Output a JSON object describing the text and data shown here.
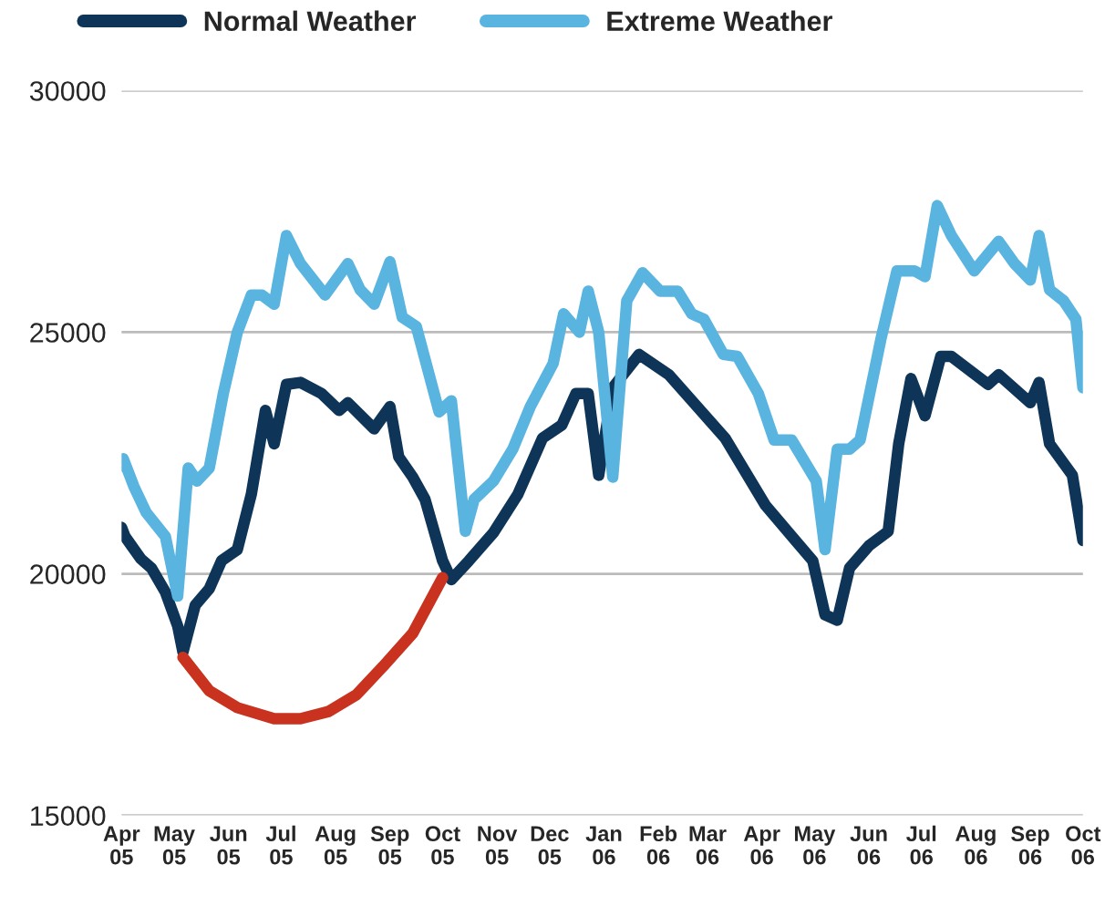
{
  "chart_data": {
    "type": "line",
    "series": [
      {
        "name": "Normal Weather",
        "color": "#0e3558",
        "x": [
          "2005-04-01",
          "2005-04-03",
          "2005-04-12",
          "2005-04-18",
          "2005-04-26",
          "2005-05-03",
          "2005-05-06",
          "2005-05-13",
          "2005-05-21",
          "2005-05-28",
          "2005-06-06",
          "2005-06-14",
          "2005-06-22",
          "2005-06-27",
          "2005-07-04",
          "2005-07-12",
          "2005-07-24",
          "2005-08-03",
          "2005-08-08",
          "2005-08-23",
          "2005-09-01",
          "2005-09-06",
          "2005-09-14",
          "2005-09-21",
          "2005-10-01",
          "2005-10-06",
          "2005-10-16",
          "2005-10-30",
          "2005-11-13",
          "2005-11-27",
          "2005-12-08",
          "2005-12-16",
          "2005-12-23",
          "2005-12-29",
          "2006-01-06",
          "2006-01-21",
          "2006-02-07",
          "2006-03-11",
          "2006-04-03",
          "2006-04-21",
          "2006-04-30",
          "2006-05-07",
          "2006-05-14",
          "2006-05-21",
          "2006-06-01",
          "2006-06-12",
          "2006-06-18",
          "2006-06-25",
          "2006-07-03",
          "2006-07-12",
          "2006-07-18",
          "2006-08-08",
          "2006-08-14",
          "2006-09-01",
          "2006-09-06",
          "2006-09-12",
          "2006-09-25",
          "2006-10-01"
        ],
        "values": [
          20960,
          20770,
          20310,
          20120,
          19620,
          18920,
          18380,
          19350,
          19690,
          20270,
          20500,
          21650,
          23380,
          22690,
          23920,
          23960,
          23730,
          23380,
          23540,
          23000,
          23460,
          22420,
          22000,
          21540,
          20270,
          19880,
          20270,
          20850,
          21650,
          22810,
          23080,
          23730,
          23730,
          22040,
          23850,
          24540,
          24120,
          22810,
          21420,
          20650,
          20270,
          19150,
          19040,
          20120,
          20580,
          20880,
          22690,
          24040,
          23270,
          24500,
          24500,
          23920,
          24120,
          23540,
          23960,
          22690,
          22040,
          20690
        ]
      },
      {
        "name": "Extreme Weather",
        "color": "#5ab4e0",
        "x": [
          "2005-04-01",
          "2005-04-02",
          "2005-04-08",
          "2005-04-15",
          "2005-04-26",
          "2005-05-03",
          "2005-05-09",
          "2005-05-14",
          "2005-05-21",
          "2005-05-29",
          "2005-06-06",
          "2005-06-14",
          "2005-06-20",
          "2005-06-27",
          "2005-07-04",
          "2005-07-12",
          "2005-07-26",
          "2005-08-08",
          "2005-08-15",
          "2005-08-23",
          "2005-09-01",
          "2005-09-08",
          "2005-09-16",
          "2005-09-29",
          "2005-10-06",
          "2005-10-14",
          "2005-10-19",
          "2005-10-30",
          "2005-11-10",
          "2005-11-20",
          "2005-12-03",
          "2005-12-09",
          "2005-12-18",
          "2005-12-23",
          "2005-12-29",
          "2006-01-06",
          "2006-01-14",
          "2006-01-23",
          "2006-02-02",
          "2006-02-12",
          "2006-02-20",
          "2006-02-27",
          "2006-03-10",
          "2006-03-18",
          "2006-03-30",
          "2006-04-08",
          "2006-04-18",
          "2006-05-02",
          "2006-05-07",
          "2006-05-14",
          "2006-05-21",
          "2006-05-27",
          "2006-06-08",
          "2006-06-17",
          "2006-06-27",
          "2006-07-03",
          "2006-07-10",
          "2006-07-18",
          "2006-07-31",
          "2006-08-14",
          "2006-08-23",
          "2006-09-01",
          "2006-09-06",
          "2006-09-12",
          "2006-09-20",
          "2006-09-27",
          "2006-10-01"
        ],
        "values": [
          22230,
          22380,
          21810,
          21270,
          20770,
          19540,
          22190,
          21920,
          22190,
          23730,
          25000,
          25770,
          25770,
          25580,
          27000,
          26420,
          25770,
          26420,
          25880,
          25580,
          26460,
          25310,
          25120,
          23350,
          23580,
          20880,
          21540,
          21920,
          22580,
          23460,
          24350,
          25380,
          25000,
          25850,
          25000,
          22000,
          25650,
          26230,
          25850,
          25850,
          25380,
          25270,
          24540,
          24500,
          23730,
          22770,
          22770,
          21920,
          20500,
          22580,
          22580,
          22770,
          24880,
          26270,
          26270,
          26150,
          27620,
          27000,
          26270,
          26880,
          26420,
          26080,
          27000,
          25880,
          25650,
          25270,
          23850
        ]
      },
      {
        "color": "#c8321e",
        "x": [
          "2005-05-06",
          "2005-05-21",
          "2005-06-06",
          "2005-06-27",
          "2005-07-12",
          "2005-07-28",
          "2005-08-13",
          "2005-08-28",
          "2005-09-14",
          "2005-10-01"
        ],
        "values": [
          18270,
          17580,
          17230,
          17000,
          17000,
          17150,
          17500,
          18080,
          18770,
          19920
        ]
      }
    ],
    "xlim": [
      "2005-04-01",
      "2006-10-01"
    ],
    "xticks": [
      {
        "value": "2005-04",
        "label": "Apr\n05"
      },
      {
        "value": "2005-05",
        "label": "May\n05"
      },
      {
        "value": "2005-06",
        "label": "Jun\n05"
      },
      {
        "value": "2005-07",
        "label": "Jul\n05"
      },
      {
        "value": "2005-08",
        "label": "Aug\n05"
      },
      {
        "value": "2005-09",
        "label": "Sep\n05"
      },
      {
        "value": "2005-10",
        "label": "Oct\n05"
      },
      {
        "value": "2005-11",
        "label": "Nov\n05"
      },
      {
        "value": "2005-12",
        "label": "Dec\n05"
      },
      {
        "value": "2006-01",
        "label": "Jan\n06"
      },
      {
        "value": "2006-02",
        "label": "Feb\n06"
      },
      {
        "value": "2006-03",
        "label": "Mar\n06"
      },
      {
        "value": "2006-04",
        "label": "Apr\n06"
      },
      {
        "value": "2006-05",
        "label": "May\n06"
      },
      {
        "value": "2006-06",
        "label": "Jun\n06"
      },
      {
        "value": "2006-07",
        "label": "Jul\n06"
      },
      {
        "value": "2006-08",
        "label": "Aug\n06"
      },
      {
        "value": "2006-09",
        "label": "Sep\n06"
      },
      {
        "value": "2006-10",
        "label": "Oct\n06"
      }
    ],
    "ylim": [
      15000,
      30000
    ],
    "yticks": [
      15000,
      20000,
      25000,
      30000
    ],
    "grid": "y",
    "legend": "top",
    "marker": "none",
    "line_style": "solid"
  }
}
